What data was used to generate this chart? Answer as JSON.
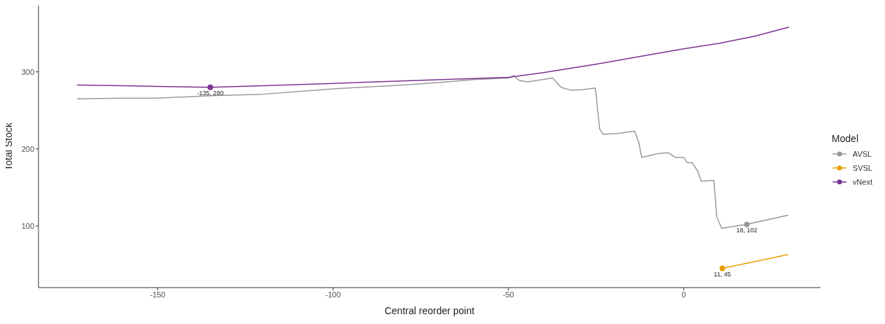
{
  "chart_data": {
    "type": "line",
    "xlabel": "Central reorder point",
    "ylabel": "Total Stock",
    "legend_title": "Model",
    "legend": "right",
    "grid": false,
    "marker": "none",
    "line_style": "solid",
    "xlim": [
      -184,
      39
    ],
    "xticks": [
      -150,
      -100,
      -50,
      0
    ],
    "ylim": [
      20,
      386
    ],
    "yticks": [
      100,
      200,
      300
    ],
    "series": [
      {
        "name": "AVSL",
        "color": "#999999",
        "x": [
          -173,
          -160,
          -150,
          -140,
          -135,
          -120,
          -100,
          -80,
          -70,
          -60,
          -50,
          -48.4,
          -47,
          -44.6,
          -37.4,
          -35,
          -32,
          -28.6,
          -25.2,
          -24,
          -23,
          -19,
          -14,
          -12.8,
          -12,
          -7.4,
          -4.4,
          -2.4,
          0,
          1,
          2.4,
          4,
          5,
          8.6,
          9.4,
          10.8,
          17.8,
          29.8
        ],
        "values": [
          265,
          266,
          266,
          268,
          269,
          271,
          278,
          283,
          286,
          290,
          292,
          295,
          289,
          287,
          292,
          280,
          276,
          277,
          279,
          226,
          219,
          220,
          223,
          208,
          189,
          194,
          195,
          189,
          189,
          182,
          182,
          171,
          158,
          159,
          112,
          97,
          102,
          114
        ]
      },
      {
        "name": "SVSL",
        "color": "#e69f00",
        "x": [
          11,
          29.8
        ],
        "values": [
          45,
          63
        ]
      },
      {
        "name": "vNext",
        "color": "#7b3294",
        "x": [
          -173,
          -160,
          -150,
          -135,
          -120,
          -100,
          -75,
          -50,
          -40,
          -25,
          -10,
          0,
          10,
          20,
          30
        ],
        "values": [
          283,
          282,
          281,
          280,
          282,
          285,
          289,
          293,
          299,
          310,
          322,
          330,
          337,
          346,
          358
        ]
      },
      {
        "type": "scatter",
        "marker": "circle",
        "color": "#7b3294",
        "x": [
          -135
        ],
        "values": [
          280
        ]
      },
      {
        "type": "scatter",
        "marker": "circle",
        "color": "#999999",
        "x": [
          18
        ],
        "values": [
          102
        ]
      },
      {
        "type": "scatter",
        "marker": "circle",
        "color": "#e69f00",
        "x": [
          11
        ],
        "values": [
          45
        ]
      }
    ],
    "annotations": [
      {
        "text": "-135, 280",
        "x": -135,
        "y": 280
      },
      {
        "text": "18, 102",
        "x": 18,
        "y": 102
      },
      {
        "text": "11, 45",
        "x": 11,
        "y": 45
      }
    ]
  }
}
